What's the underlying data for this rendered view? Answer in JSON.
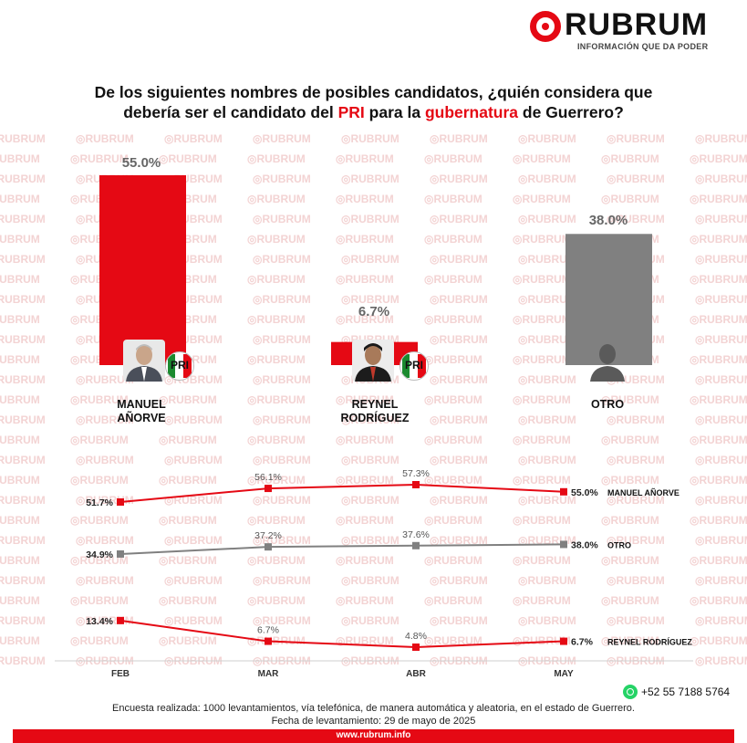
{
  "brand": {
    "name": "RUBRUM",
    "tagline": "INFORMACIÓN QUE DA PODER",
    "watermark": "RUBRUM",
    "accent": "#e50914",
    "gray": "#808080"
  },
  "title": {
    "line1": "De los siguientes nombres de posibles candidatos, ¿quién considera que",
    "line2_pre": "debería ser el candidato del ",
    "line2_pri": "PRI",
    "line2_mid": " para la ",
    "line2_gub": "gubernatura",
    "line2_post": " de Guerrero?"
  },
  "candidates": {
    "anorve": {
      "line1": "MANUEL",
      "line2": "AÑORVE",
      "party": "PRI",
      "photo_icon": "candidate-photo"
    },
    "reynel": {
      "line1": "REYNEL",
      "line2": "RODRÍGUEZ",
      "party": "PRI",
      "photo_icon": "candidate-photo"
    },
    "otro": {
      "line1": "OTRO",
      "photo_icon": "person-silhouette-icon"
    }
  },
  "chart_data": [
    {
      "type": "bar",
      "categories": [
        "MANUEL AÑORVE",
        "REYNEL RODRÍGUEZ",
        "OTRO"
      ],
      "values": [
        55.0,
        6.7,
        38.0
      ],
      "value_labels": [
        "55.0%",
        "6.7%",
        "38.0%"
      ],
      "colors": [
        "#e50914",
        "#e50914",
        "#808080"
      ],
      "ylim": [
        0,
        55
      ]
    },
    {
      "type": "line",
      "categories": [
        "FEB",
        "MAR",
        "ABR",
        "MAY"
      ],
      "series": [
        {
          "name": "MANUEL AÑORVE",
          "values": [
            51.7,
            56.1,
            57.3,
            55.0
          ],
          "labels": [
            "51.7%",
            "56.1%",
            "57.3%",
            "55.0%"
          ],
          "color": "#e50914"
        },
        {
          "name": "OTRO",
          "values": [
            34.9,
            37.2,
            37.6,
            38.0
          ],
          "labels": [
            "34.9%",
            "37.2%",
            "37.6%",
            "38.0%"
          ],
          "color": "#808080"
        },
        {
          "name": "REYNEL RODRÍGUEZ",
          "values": [
            13.4,
            6.7,
            4.8,
            6.7
          ],
          "labels": [
            "13.4%",
            "6.7%",
            "4.8%",
            "6.7%"
          ],
          "color": "#e50914"
        }
      ]
    }
  ],
  "contact": {
    "phone": "+52 55 7188 5764",
    "phone_icon": "whatsapp-icon"
  },
  "footer": {
    "method": "Encuesta realizada: 1000 levantamientos, vía telefónica, de manera automática y aleatoria, en el estado de Guerrero.",
    "date": "Fecha de levantamiento: 29 de mayo de 2025",
    "url": "www.rubrum.info"
  }
}
